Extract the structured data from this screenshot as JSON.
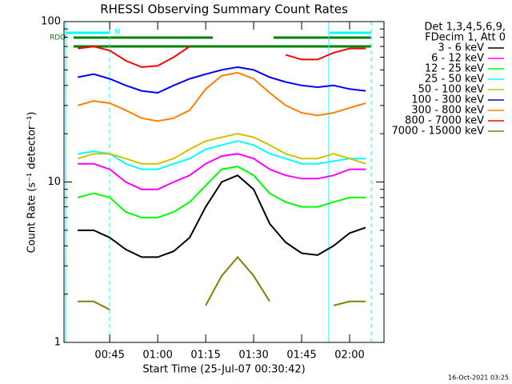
{
  "chart_data": {
    "type": "line",
    "title": "RHESSI Observing Summary Count Rates",
    "x_label": "Start Time (25-Jul-07 00:30:42)",
    "y_label": "Count Rate (s⁻¹ detector⁻¹)",
    "timestamp": "16-Oct-2021 03:25",
    "legend_header": [
      "Det 1,3,4,5,6,9,",
      "FDecim 1, Att 0"
    ],
    "annotations": [
      "RDO",
      "N"
    ],
    "log_y": true,
    "xlim": [
      30.7,
      130.75
    ],
    "xticks": [
      {
        "value": 45,
        "label": "00:45"
      },
      {
        "value": 60,
        "label": "01:00"
      },
      {
        "value": 75,
        "label": "01:15"
      },
      {
        "value": 90,
        "label": "01:30"
      },
      {
        "value": 105,
        "label": "01:45"
      },
      {
        "value": 120,
        "label": "02:00"
      }
    ],
    "ylim": [
      1,
      100
    ],
    "yticks": [
      1,
      10,
      100
    ],
    "yminorticks": [
      2,
      3,
      4,
      5,
      6,
      7,
      8,
      9,
      20,
      30,
      40,
      50,
      60,
      70,
      80,
      90
    ],
    "x": [
      35,
      40,
      45,
      50,
      55,
      60,
      65,
      70,
      75,
      80,
      85,
      90,
      95,
      100,
      105,
      110,
      115,
      120,
      125
    ],
    "series": [
      {
        "name": "3 - 6 keV",
        "color": "#000000",
        "values": [
          5,
          5,
          4.5,
          3.8,
          3.4,
          3.4,
          3.7,
          4.5,
          7,
          10,
          11,
          9,
          5.5,
          4.2,
          3.6,
          3.5,
          4,
          4.8,
          5.2
        ]
      },
      {
        "name": "6 - 12 keV",
        "color": "#ff00ff",
        "values": [
          13,
          13,
          12,
          10,
          9,
          9,
          10,
          11,
          13,
          14.5,
          15,
          14,
          12,
          11,
          10.5,
          10.5,
          11,
          12,
          12
        ]
      },
      {
        "name": "12 - 25 keV",
        "color": "#00ff00",
        "values": [
          8,
          8.5,
          8,
          6.5,
          6,
          6,
          6.5,
          7.5,
          9.5,
          12,
          12.5,
          11,
          8.5,
          7.5,
          7,
          7,
          7.5,
          8,
          8
        ]
      },
      {
        "name": "25 - 50 keV",
        "color": "#00ffff",
        "values": [
          15,
          15.5,
          15,
          13,
          12,
          12,
          13,
          14,
          16,
          17,
          18,
          17,
          15,
          14,
          13,
          13,
          13.5,
          14,
          14
        ]
      },
      {
        "name": "50 - 100 keV",
        "color": "#d4c000",
        "values": [
          14,
          15,
          15,
          14,
          13,
          13,
          14,
          16,
          18,
          19,
          20,
          19,
          17,
          15,
          14,
          14,
          15,
          14,
          13
        ]
      },
      {
        "name": "100 - 300 keV",
        "color": "#0000ff",
        "values": [
          45,
          47,
          44,
          40,
          37,
          36,
          40,
          44,
          47,
          50,
          52,
          50,
          45,
          42,
          40,
          39,
          40,
          38,
          37
        ]
      },
      {
        "name": "300 - 800 keV",
        "color": "#ff8000",
        "values": [
          30,
          32,
          31,
          28,
          25,
          24,
          25,
          28,
          38,
          46,
          48,
          44,
          36,
          30,
          27,
          26,
          27,
          29,
          31
        ]
      },
      {
        "name": "800 - 7000 keV",
        "color": "#ff0000",
        "values": [
          68,
          70,
          66,
          57,
          52,
          53,
          60,
          70,
          null,
          null,
          null,
          null,
          null,
          62,
          58,
          58,
          64,
          68,
          68
        ]
      },
      {
        "name": "7000 - 15000 keV",
        "color": "#808000",
        "values": [
          1.8,
          1.8,
          1.6,
          null,
          null,
          null,
          null,
          null,
          1.7,
          2.6,
          3.4,
          2.6,
          1.8,
          null,
          null,
          null,
          1.7,
          1.8,
          1.8
        ]
      }
    ]
  }
}
